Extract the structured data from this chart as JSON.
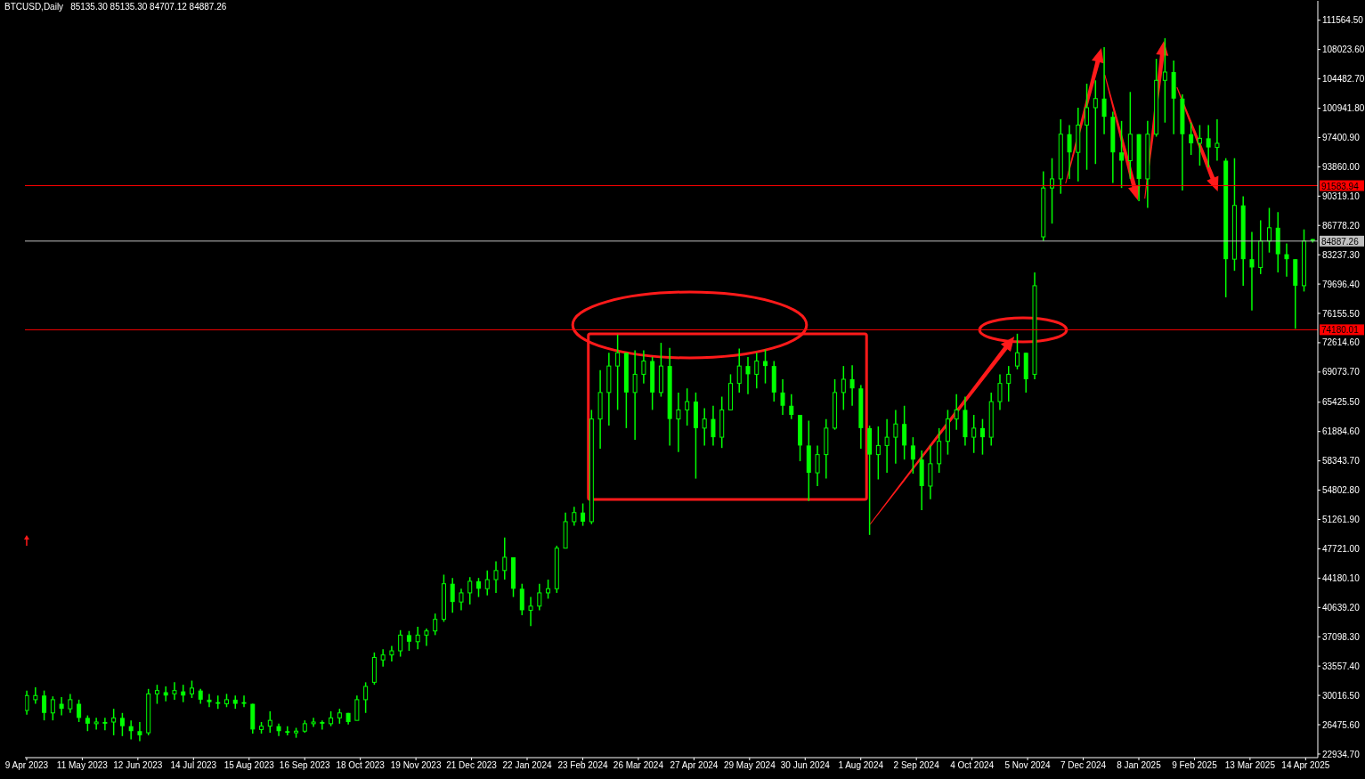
{
  "chart_data": {
    "type": "candlestick",
    "title": "BTCUSD,Daily",
    "subtitle": "85135.30 85135.30 84707.12 84887.26",
    "color": "#00ff00",
    "x": [
      "2023-04-09",
      "2023-04-14",
      "2023-04-19",
      "2023-04-24",
      "2023-04-29",
      "2023-05-04",
      "2023-05-09",
      "2023-05-14",
      "2023-05-19",
      "2023-05-24",
      "2023-05-29",
      "2023-06-03",
      "2023-06-08",
      "2023-06-13",
      "2023-06-18",
      "2023-06-23",
      "2023-06-28",
      "2023-07-03",
      "2023-07-08",
      "2023-07-13",
      "2023-07-18",
      "2023-07-23",
      "2023-07-28",
      "2023-08-02",
      "2023-08-07",
      "2023-08-12",
      "2023-08-17",
      "2023-08-22",
      "2023-08-27",
      "2023-09-01",
      "2023-09-06",
      "2023-09-11",
      "2023-09-16",
      "2023-09-21",
      "2023-09-26",
      "2023-10-01",
      "2023-10-06",
      "2023-10-11",
      "2023-10-16",
      "2023-10-21",
      "2023-10-26",
      "2023-10-31",
      "2023-11-05",
      "2023-11-10",
      "2023-11-15",
      "2023-11-20",
      "2023-11-25",
      "2023-11-30",
      "2023-12-05",
      "2023-12-10",
      "2023-12-15",
      "2023-12-20",
      "2023-12-25",
      "2023-12-30",
      "2024-01-04",
      "2024-01-09",
      "2024-01-14",
      "2024-01-19",
      "2024-01-24",
      "2024-01-29",
      "2024-02-03",
      "2024-02-08",
      "2024-02-13",
      "2024-02-18",
      "2024-02-23",
      "2024-02-28",
      "2024-03-04",
      "2024-03-09",
      "2024-03-14",
      "2024-03-19",
      "2024-03-24",
      "2024-03-29",
      "2024-04-03",
      "2024-04-08",
      "2024-04-13",
      "2024-04-18",
      "2024-04-23",
      "2024-04-28",
      "2024-05-03",
      "2024-05-08",
      "2024-05-13",
      "2024-05-18",
      "2024-05-23",
      "2024-05-28",
      "2024-06-02",
      "2024-06-07",
      "2024-06-12",
      "2024-06-17",
      "2024-06-22",
      "2024-06-27",
      "2024-07-02",
      "2024-07-07",
      "2024-07-12",
      "2024-07-17",
      "2024-07-22",
      "2024-07-27",
      "2024-08-01",
      "2024-08-06",
      "2024-08-11",
      "2024-08-16",
      "2024-08-21",
      "2024-08-26",
      "2024-08-31",
      "2024-09-05",
      "2024-09-10",
      "2024-09-15",
      "2024-09-20",
      "2024-09-25",
      "2024-09-30",
      "2024-10-05",
      "2024-10-10",
      "2024-10-15",
      "2024-10-20",
      "2024-10-25",
      "2024-10-30",
      "2024-11-04",
      "2024-11-09",
      "2024-11-14",
      "2024-11-19",
      "2024-11-24",
      "2024-11-29",
      "2024-12-04",
      "2024-12-09",
      "2024-12-14",
      "2024-12-19",
      "2024-12-24",
      "2024-12-29",
      "2025-01-03",
      "2025-01-08",
      "2025-01-13",
      "2025-01-18",
      "2025-01-23",
      "2025-01-28",
      "2025-02-02",
      "2025-02-07",
      "2025-02-12",
      "2025-02-17",
      "2025-02-22",
      "2025-02-27",
      "2025-03-04",
      "2025-03-09",
      "2025-03-14",
      "2025-03-19",
      "2025-03-24",
      "2025-03-29",
      "2025-04-03",
      "2025-04-08",
      "2025-04-13",
      "2025-04-18"
    ],
    "ohlc": [
      [
        28200,
        30600,
        27700,
        30000
      ],
      [
        29500,
        31000,
        29000,
        30000
      ],
      [
        30000,
        30600,
        27000,
        27900
      ],
      [
        27900,
        29900,
        27000,
        29500
      ],
      [
        29000,
        29800,
        27600,
        28400
      ],
      [
        28400,
        30200,
        27900,
        29500
      ],
      [
        29000,
        29500,
        26800,
        27300
      ],
      [
        27300,
        27600,
        25700,
        26600
      ],
      [
        26600,
        27300,
        25900,
        26800
      ],
      [
        26800,
        27300,
        25800,
        26600
      ],
      [
        26800,
        28400,
        25200,
        27300
      ],
      [
        27300,
        27900,
        25100,
        26300
      ],
      [
        26300,
        27000,
        24700,
        25700
      ],
      [
        25700,
        26800,
        24500,
        25200
      ],
      [
        25500,
        30800,
        25200,
        30200
      ],
      [
        30200,
        31300,
        29000,
        30600
      ],
      [
        30400,
        31100,
        29300,
        30000
      ],
      [
        30200,
        31600,
        29500,
        30600
      ],
      [
        30500,
        31300,
        29200,
        30000
      ],
      [
        30200,
        31800,
        29700,
        30900
      ],
      [
        30600,
        30800,
        29000,
        29500
      ],
      [
        29500,
        30200,
        28600,
        29200
      ],
      [
        29200,
        30000,
        28400,
        29000
      ],
      [
        29000,
        30200,
        28600,
        29500
      ],
      [
        29500,
        30000,
        28400,
        29000
      ],
      [
        29200,
        30000,
        28600,
        29000
      ],
      [
        29000,
        29000,
        25400,
        25900
      ],
      [
        25900,
        26800,
        25400,
        26300
      ],
      [
        26300,
        28100,
        25500,
        27000
      ],
      [
        26300,
        26600,
        25100,
        25700
      ],
      [
        25700,
        26300,
        25200,
        25500
      ],
      [
        25500,
        26100,
        24900,
        25700
      ],
      [
        25700,
        27000,
        25500,
        26600
      ],
      [
        26600,
        27300,
        26200,
        26800
      ],
      [
        26800,
        27000,
        25900,
        26600
      ],
      [
        26600,
        28100,
        26300,
        27300
      ],
      [
        27300,
        28400,
        26600,
        27900
      ],
      [
        27900,
        27900,
        26500,
        26800
      ],
      [
        27000,
        30000,
        27000,
        29500
      ],
      [
        29500,
        31600,
        27900,
        31100
      ],
      [
        31600,
        35200,
        31300,
        34600
      ],
      [
        34300,
        35600,
        33500,
        34900
      ],
      [
        34900,
        36000,
        34100,
        35400
      ],
      [
        35400,
        37900,
        34700,
        37300
      ],
      [
        37300,
        37800,
        35400,
        36500
      ],
      [
        36500,
        38300,
        35600,
        37300
      ],
      [
        37300,
        38100,
        36000,
        37800
      ],
      [
        37800,
        39900,
        37300,
        39200
      ],
      [
        39200,
        44600,
        38900,
        43500
      ],
      [
        43500,
        44200,
        40000,
        41300
      ],
      [
        41300,
        42900,
        40300,
        42400
      ],
      [
        42400,
        44300,
        41000,
        43800
      ],
      [
        43800,
        44200,
        41900,
        42900
      ],
      [
        42900,
        45100,
        42100,
        44000
      ],
      [
        44000,
        46200,
        42400,
        45100
      ],
      [
        45100,
        49100,
        44000,
        46700
      ],
      [
        46700,
        46700,
        41900,
        42900
      ],
      [
        42900,
        43500,
        39700,
        40300
      ],
      [
        40300,
        41900,
        38400,
        40800
      ],
      [
        40800,
        43500,
        40300,
        42400
      ],
      [
        42400,
        44000,
        41700,
        42900
      ],
      [
        42900,
        48100,
        42400,
        47800
      ],
      [
        47800,
        52100,
        47800,
        51000
      ],
      [
        51000,
        52800,
        50500,
        52100
      ],
      [
        52100,
        53200,
        50500,
        51000
      ],
      [
        51000,
        64500,
        50700,
        63400
      ],
      [
        63400,
        69300,
        59800,
        66600
      ],
      [
        66600,
        71400,
        62600,
        69800
      ],
      [
        69800,
        73600,
        64500,
        71400
      ],
      [
        71400,
        71400,
        62300,
        66600
      ],
      [
        66600,
        71700,
        60900,
        68800
      ],
      [
        68800,
        71700,
        67700,
        70400
      ],
      [
        70400,
        70900,
        64500,
        66600
      ],
      [
        66600,
        72600,
        66100,
        69800
      ],
      [
        69800,
        72000,
        60200,
        63400
      ],
      [
        63400,
        66600,
        59400,
        64500
      ],
      [
        64500,
        67100,
        62600,
        65500
      ],
      [
        65500,
        66600,
        56200,
        62300
      ],
      [
        62300,
        64700,
        60200,
        63400
      ],
      [
        63400,
        65000,
        60200,
        61200
      ],
      [
        61200,
        66100,
        59900,
        64500
      ],
      [
        64500,
        68800,
        64500,
        67700
      ],
      [
        67700,
        71900,
        66600,
        69800
      ],
      [
        69800,
        70900,
        66400,
        68800
      ],
      [
        68800,
        71400,
        67100,
        70400
      ],
      [
        70400,
        71800,
        67700,
        69800
      ],
      [
        69800,
        70400,
        65500,
        66600
      ],
      [
        66600,
        68200,
        63900,
        65000
      ],
      [
        65000,
        66400,
        63400,
        63900
      ],
      [
        63900,
        63900,
        58300,
        60200
      ],
      [
        60200,
        63200,
        53500,
        56900
      ],
      [
        56900,
        60200,
        55300,
        59100
      ],
      [
        59100,
        63400,
        56200,
        62300
      ],
      [
        62300,
        68200,
        62100,
        66600
      ],
      [
        66600,
        69800,
        64500,
        68200
      ],
      [
        68200,
        69900,
        65000,
        67100
      ],
      [
        67100,
        67500,
        59800,
        62300
      ],
      [
        62300,
        62600,
        49400,
        59100
      ],
      [
        59100,
        62500,
        56100,
        60200
      ],
      [
        60200,
        63400,
        56900,
        61200
      ],
      [
        61200,
        64500,
        58000,
        62800
      ],
      [
        62800,
        65000,
        58500,
        60200
      ],
      [
        60200,
        61200,
        56800,
        58500
      ],
      [
        58500,
        59600,
        52400,
        55300
      ],
      [
        55300,
        60200,
        53700,
        58000
      ],
      [
        58000,
        62300,
        56900,
        60700
      ],
      [
        60700,
        64500,
        59100,
        63400
      ],
      [
        63400,
        66400,
        62100,
        64500
      ],
      [
        64500,
        66100,
        60200,
        61200
      ],
      [
        61200,
        63900,
        59300,
        62300
      ],
      [
        62300,
        63400,
        59100,
        61200
      ],
      [
        61200,
        66600,
        60200,
        65500
      ],
      [
        65500,
        68800,
        64500,
        67700
      ],
      [
        67700,
        69800,
        65500,
        68800
      ],
      [
        69800,
        73700,
        69400,
        71400
      ],
      [
        71400,
        71400,
        66600,
        68200
      ],
      [
        68800,
        81100,
        68200,
        79500
      ],
      [
        85400,
        93300,
        84900,
        91300
      ],
      [
        91300,
        94900,
        87000,
        92400
      ],
      [
        92400,
        99600,
        90600,
        97800
      ],
      [
        97800,
        98900,
        92400,
        95600
      ],
      [
        95600,
        101000,
        92100,
        98900
      ],
      [
        98900,
        103900,
        93500,
        101000
      ],
      [
        101000,
        104300,
        94200,
        102100
      ],
      [
        102100,
        108300,
        97800,
        99900
      ],
      [
        99900,
        100500,
        91900,
        95600
      ],
      [
        95600,
        99400,
        91300,
        94600
      ],
      [
        94600,
        102900,
        92400,
        97800
      ],
      [
        97800,
        97800,
        89700,
        92400
      ],
      [
        92400,
        99400,
        88900,
        97800
      ],
      [
        97800,
        106900,
        97500,
        104300
      ],
      [
        104300,
        109400,
        99200,
        105300
      ],
      [
        105300,
        106700,
        97800,
        102100
      ],
      [
        102100,
        102600,
        91000,
        97800
      ],
      [
        97800,
        99200,
        95300,
        96700
      ],
      [
        96700,
        98900,
        94000,
        97300
      ],
      [
        97300,
        98900,
        93800,
        96200
      ],
      [
        96200,
        99600,
        94600,
        96700
      ],
      [
        94600,
        94900,
        78100,
        82700
      ],
      [
        82700,
        94900,
        81300,
        89200
      ],
      [
        89200,
        90300,
        79500,
        82700
      ],
      [
        82700,
        86000,
        76500,
        81700
      ],
      [
        81700,
        87400,
        80900,
        84900
      ],
      [
        84900,
        88900,
        83500,
        86500
      ],
      [
        86500,
        88400,
        81100,
        83300
      ],
      [
        83300,
        84600,
        80600,
        82700
      ],
      [
        82700,
        82700,
        74300,
        79500
      ],
      [
        79500,
        86300,
        78800,
        84900
      ],
      [
        85135.3,
        85135.3,
        84707.12,
        84887.26
      ]
    ],
    "xlim": [
      "2023-04-08",
      "2025-04-21"
    ],
    "xticks": [
      {
        "value": "2023-04-09",
        "label": "9 Apr 2023"
      },
      {
        "value": "2023-05-11",
        "label": "11 May 2023"
      },
      {
        "value": "2023-06-12",
        "label": "12 Jun 2023"
      },
      {
        "value": "2023-07-14",
        "label": "14 Jul 2023"
      },
      {
        "value": "2023-08-15",
        "label": "15 Aug 2023"
      },
      {
        "value": "2023-09-16",
        "label": "16 Sep 2023"
      },
      {
        "value": "2023-10-18",
        "label": "18 Oct 2023"
      },
      {
        "value": "2023-11-19",
        "label": "19 Nov 2023"
      },
      {
        "value": "2023-12-21",
        "label": "21 Dec 2023"
      },
      {
        "value": "2024-01-22",
        "label": "22 Jan 2024"
      },
      {
        "value": "2024-02-23",
        "label": "23 Feb 2024"
      },
      {
        "value": "2024-03-26",
        "label": "26 Mar 2024"
      },
      {
        "value": "2024-04-27",
        "label": "27 Apr 2024"
      },
      {
        "value": "2024-05-29",
        "label": "29 May 2024"
      },
      {
        "value": "2024-06-30",
        "label": "30 Jun 2024"
      },
      {
        "value": "2024-08-01",
        "label": "1 Aug 2024"
      },
      {
        "value": "2024-09-02",
        "label": "2 Sep 2024"
      },
      {
        "value": "2024-10-04",
        "label": "4 Oct 2024"
      },
      {
        "value": "2024-11-05",
        "label": "5 Nov 2024"
      },
      {
        "value": "2024-12-07",
        "label": "7 Dec 2024"
      },
      {
        "value": "2025-01-08",
        "label": "8 Jan 2025"
      },
      {
        "value": "2025-02-09",
        "label": "9 Feb 2025"
      },
      {
        "value": "2025-03-13",
        "label": "13 Mar 2025"
      },
      {
        "value": "2025-04-14",
        "label": "14 Apr 2025"
      }
    ],
    "ylim": [
      22500,
      113900
    ],
    "yticks": [
      {
        "value": 111564.5,
        "label": "111564.50"
      },
      {
        "value": 108023.6,
        "label": "108023.60"
      },
      {
        "value": 104482.7,
        "label": "104482.70"
      },
      {
        "value": 100941.8,
        "label": "100941.80"
      },
      {
        "value": 97400.9,
        "label": "97400.90"
      },
      {
        "value": 93860,
        "label": "93860.00"
      },
      {
        "value": 90319.1,
        "label": "90319.10"
      },
      {
        "value": 86778.2,
        "label": "86778.20"
      },
      {
        "value": 83237.3,
        "label": "83237.30"
      },
      {
        "value": 79696.4,
        "label": "79696.40"
      },
      {
        "value": 76155.5,
        "label": "76155.50"
      },
      {
        "value": 72614.6,
        "label": "72614.60"
      },
      {
        "value": 69073.7,
        "label": "69073.70"
      },
      {
        "value": 65425.5,
        "label": "65425.50"
      },
      {
        "value": 61884.6,
        "label": "61884.60"
      },
      {
        "value": 58343.7,
        "label": "58343.70"
      },
      {
        "value": 54802.8,
        "label": "54802.80"
      },
      {
        "value": 51261.9,
        "label": "51261.90"
      },
      {
        "value": 47721,
        "label": "47721.00"
      },
      {
        "value": 44180.1,
        "label": "44180.10"
      },
      {
        "value": 40639.2,
        "label": "40639.20"
      },
      {
        "value": 37098.3,
        "label": "37098.30"
      },
      {
        "value": 33557.4,
        "label": "33557.40"
      },
      {
        "value": 30016.5,
        "label": "30016.50"
      },
      {
        "value": 26475.6,
        "label": "26475.60"
      },
      {
        "value": 22934.7,
        "label": "22934.70"
      }
    ],
    "ref_lines": [
      {
        "axis": "y",
        "value": 91583.94,
        "label": "91583.94",
        "color": "#ff0000"
      },
      {
        "axis": "y",
        "value": 84887.26,
        "label": "84887.26",
        "color": "#c0c0c0"
      },
      {
        "axis": "y",
        "value": 74180.01,
        "label": "74180.01",
        "color": "#ff0000"
      }
    ]
  }
}
